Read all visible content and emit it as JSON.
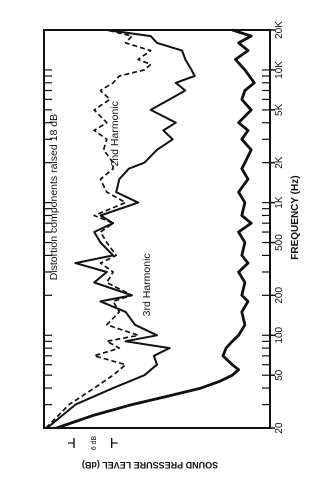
{
  "chart_data": {
    "type": "line",
    "xlabel": "FREQUENCY (Hz)",
    "ylabel": "SOUND PRESSURE LEVEL (dB)",
    "xscale": "log",
    "xlim": [
      20,
      20000
    ],
    "ylim_db": [
      0,
      36
    ],
    "scale_marker": "6 dB",
    "x_ticks": [
      {
        "value": 20,
        "label": "20"
      },
      {
        "value": 50,
        "label": "50"
      },
      {
        "value": 100,
        "label": "100"
      },
      {
        "value": 200,
        "label": "200"
      },
      {
        "value": 500,
        "label": "500"
      },
      {
        "value": 1000,
        "label": "1K"
      },
      {
        "value": 2000,
        "label": "2K"
      },
      {
        "value": 5000,
        "label": "5K"
      },
      {
        "value": 10000,
        "label": "10K"
      },
      {
        "value": 20000,
        "label": "20K"
      }
    ],
    "annotations": [
      "Distortion components raised 18 dB",
      "2nd Harmonic",
      "3rd Harmonic"
    ],
    "series": [
      {
        "style": "solid-thick",
        "x": [
          20,
          25,
          30,
          35,
          40,
          45,
          50,
          55,
          60,
          70,
          80,
          90,
          100,
          120,
          150,
          180,
          200,
          250,
          300,
          350,
          400,
          500,
          600,
          700,
          800,
          1000,
          1200,
          1500,
          1800,
          2000,
          2500,
          3000,
          3500,
          4000,
          5000,
          6000,
          7000,
          8000,
          10000,
          12000,
          14000,
          16000,
          18000,
          20000
        ],
        "y": [
          2,
          8,
          14,
          20,
          25,
          28,
          30,
          31,
          30,
          28.5,
          29,
          30,
          31,
          32,
          31.5,
          32.5,
          31.5,
          32,
          31,
          32.5,
          31.5,
          32,
          31,
          33,
          31.5,
          32,
          31,
          32.5,
          31.5,
          32,
          33,
          31.5,
          32.5,
          31,
          33,
          31.5,
          32,
          33.5,
          32,
          30.5,
          32.5,
          31,
          33,
          30
        ]
      },
      {
        "style": "solid-medium",
        "x": [
          20,
          30,
          40,
          50,
          60,
          70,
          80,
          90,
          100,
          120,
          150,
          180,
          200,
          250,
          300,
          350,
          400,
          500,
          600,
          700,
          800,
          1000,
          1200,
          1500,
          1800,
          2000,
          2500,
          3000,
          3500,
          4000,
          5000,
          6000,
          7000,
          8000,
          9000,
          10000,
          12000,
          14000,
          16000,
          18000,
          20000
        ],
        "y": [
          0.5,
          5,
          11,
          16,
          18,
          17.5,
          20,
          13,
          18,
          14.5,
          13,
          9,
          14,
          8,
          10,
          5,
          11,
          9,
          8,
          11,
          9,
          15,
          11.5,
          12,
          13.5,
          16,
          18,
          20.5,
          19,
          21,
          17,
          20,
          22.5,
          21,
          24,
          23.5,
          22.5,
          22,
          18,
          17,
          10
        ]
      },
      {
        "style": "dashed",
        "x": [
          20,
          30,
          40,
          50,
          60,
          70,
          80,
          90,
          100,
          120,
          150,
          180,
          200,
          250,
          300,
          350,
          400,
          500,
          600,
          700,
          800,
          1000,
          1200,
          1500,
          1800,
          2000,
          2500,
          3000,
          3500,
          4000,
          5000,
          6000,
          7000,
          8000,
          9000,
          10000,
          11000,
          12000,
          14000,
          16000,
          18000,
          20000
        ],
        "y": [
          0.3,
          4,
          8,
          11,
          13,
          8,
          12,
          10,
          15,
          10,
          12,
          11,
          14,
          10,
          11,
          9,
          11.5,
          10,
          9,
          11,
          8,
          13,
          10,
          9,
          11,
          11,
          9.5,
          10,
          8,
          10,
          8,
          10.5,
          9,
          11,
          12,
          16,
          17,
          15,
          17,
          13,
          14,
          10
        ]
      }
    ]
  }
}
